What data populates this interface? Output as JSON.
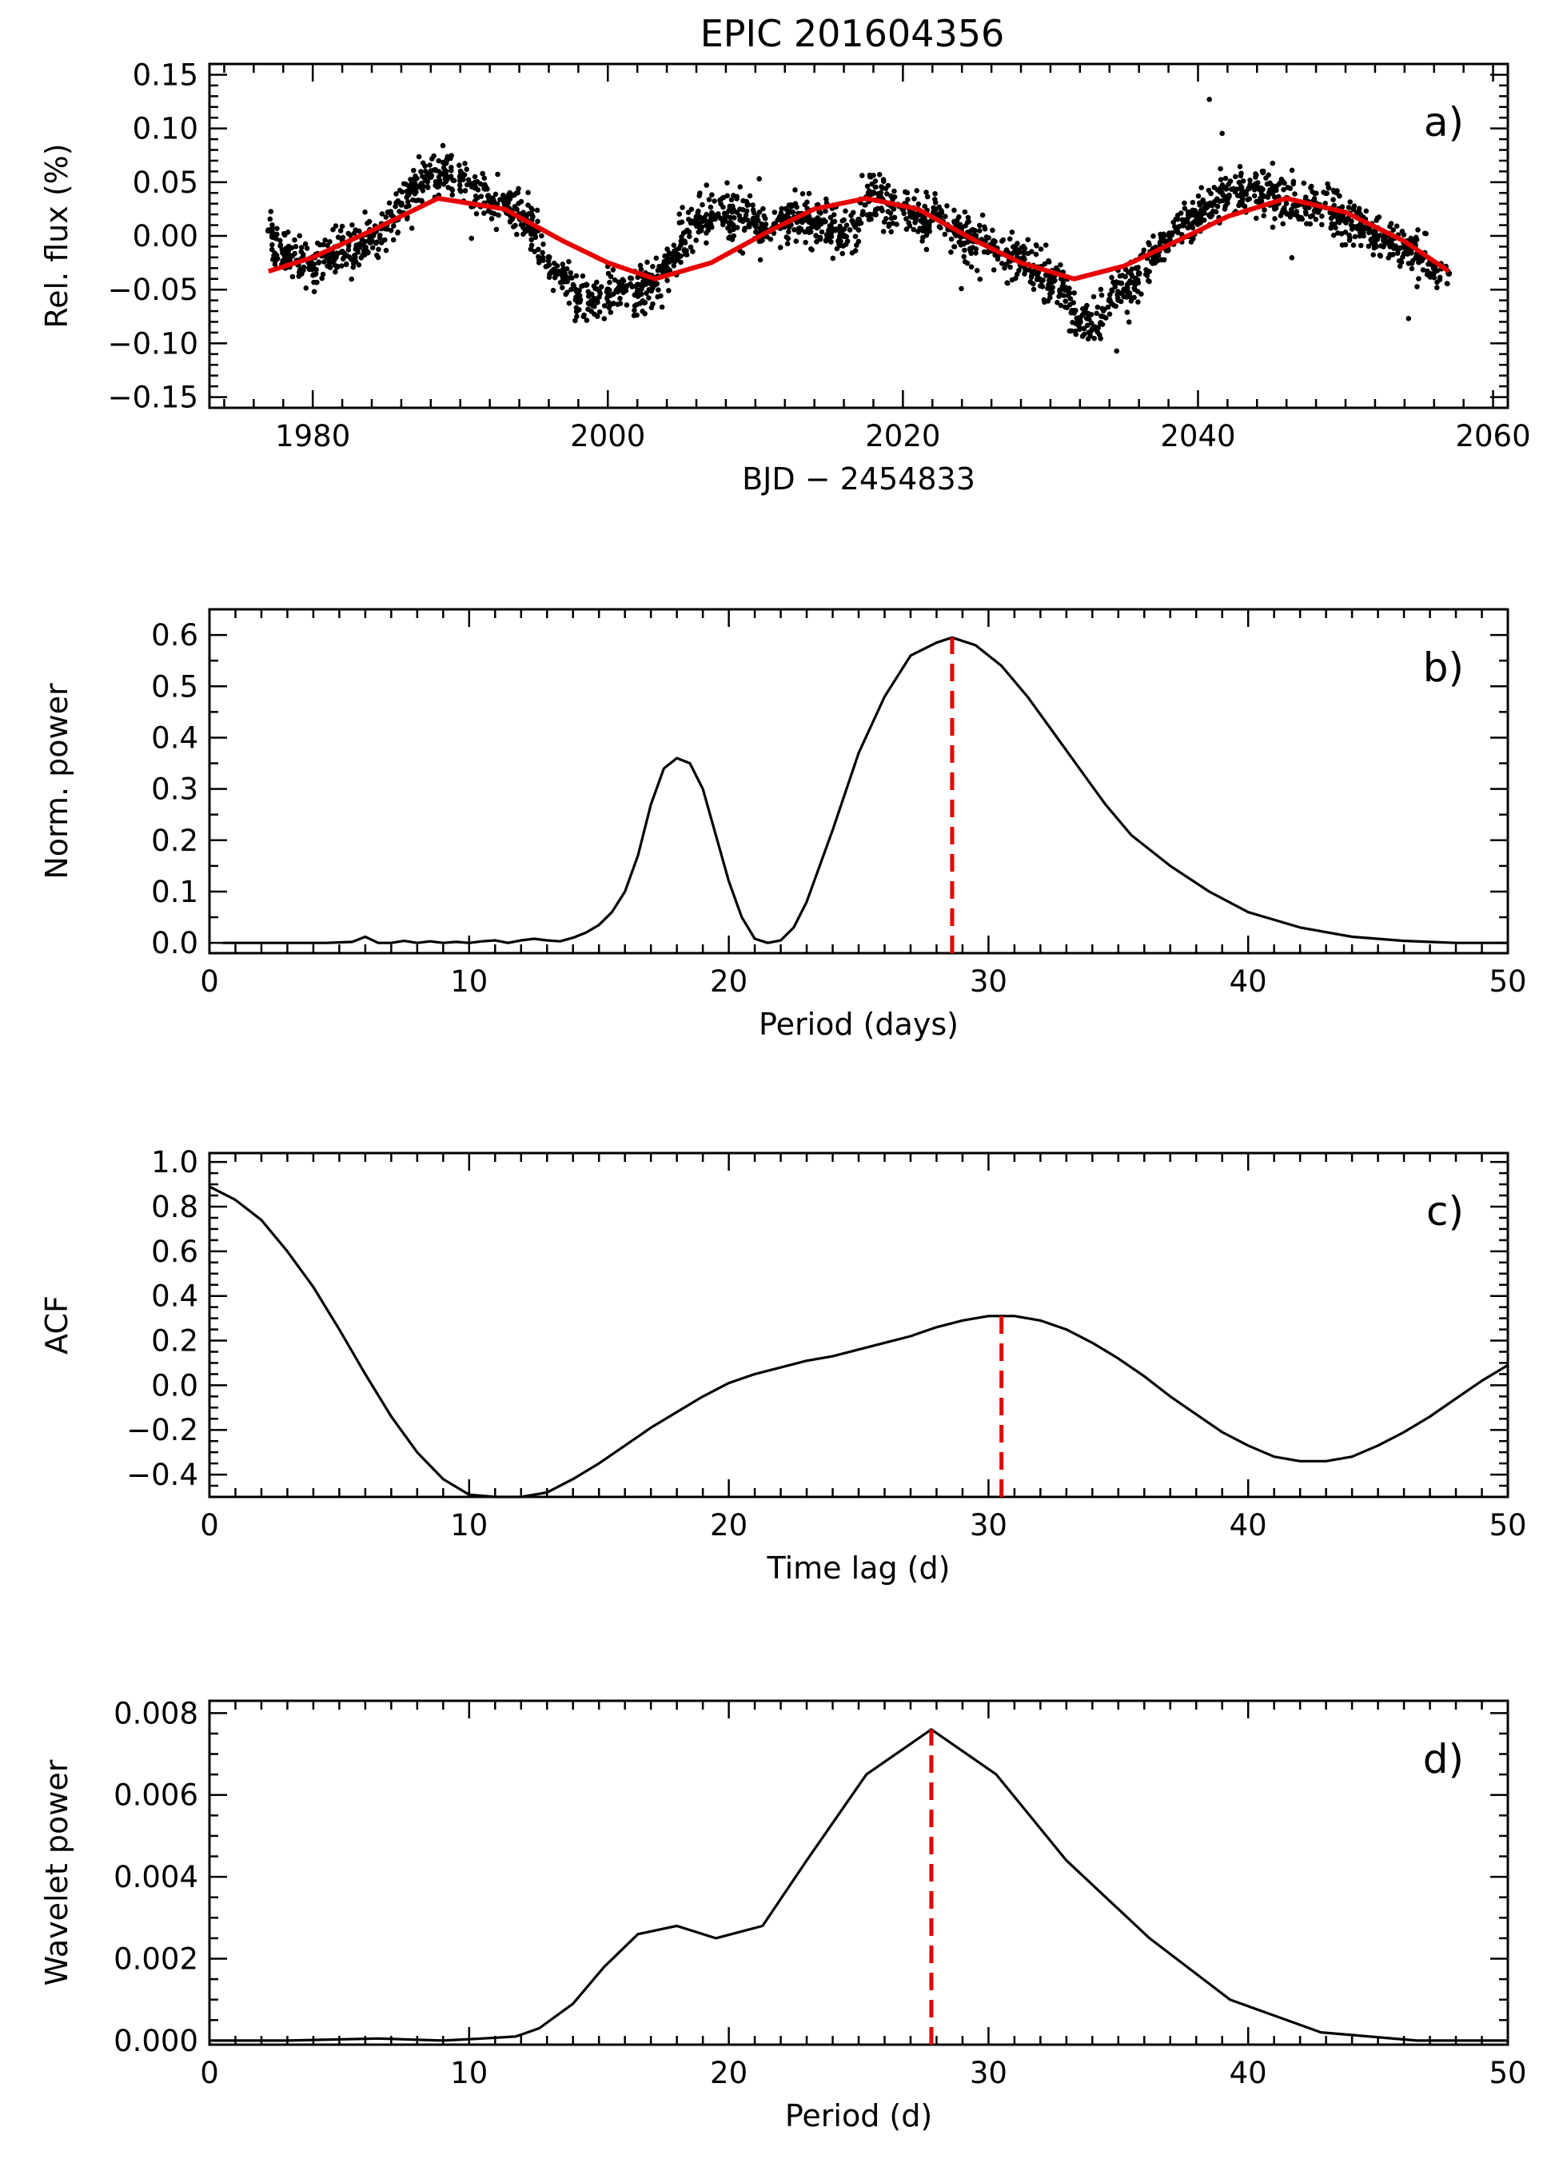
{
  "chart_data": [
    {
      "type": "scatter",
      "title": "EPIC 201604356",
      "panel_label": "a)",
      "xlabel": "BJD − 2454833",
      "ylabel": "Rel. flux (%)",
      "xlim": [
        1973,
        2061
      ],
      "ylim": [
        -0.16,
        0.16
      ],
      "xticks": [
        1980,
        2000,
        2020,
        2040,
        2060
      ],
      "yticks": [
        -0.15,
        -0.1,
        -0.05,
        0.0,
        0.05,
        0.1,
        0.15
      ],
      "xtick_labels": [
        "1980",
        "2000",
        "2020",
        "2040",
        "2060"
      ],
      "ytick_labels": [
        "−0.15",
        "−0.10",
        "−0.05",
        "0.00",
        "0.05",
        "0.10",
        "0.15"
      ],
      "series": [
        {
          "name": "observed flux",
          "kind": "scatter",
          "color": "#000000",
          "x": [
            1977,
            1978,
            1979,
            1980,
            1981,
            1982,
            1983,
            1984,
            1985,
            1986,
            1987,
            1988,
            1989,
            1990,
            1991,
            1992,
            1993,
            1994,
            1995,
            1996,
            1997,
            1998,
            1999,
            2000,
            2001,
            2002,
            2003,
            2004,
            2005,
            2006,
            2007,
            2008,
            2009,
            2010,
            2011,
            2012,
            2013,
            2014,
            2015,
            2016,
            2017,
            2018,
            2019,
            2020,
            2021,
            2022,
            2023,
            2024,
            2025,
            2026,
            2027,
            2028,
            2029,
            2030,
            2031,
            2032,
            2033,
            2034,
            2035,
            2036,
            2037,
            2038,
            2039,
            2040,
            2041,
            2042,
            2043,
            2044,
            2045,
            2046,
            2047,
            2048,
            2049,
            2050,
            2051,
            2052,
            2053,
            2054,
            2055,
            2056,
            2057
          ],
          "y": [
            0.005,
            -0.015,
            -0.025,
            -0.03,
            -0.02,
            -0.015,
            -0.01,
            -0.005,
            0.01,
            0.03,
            0.045,
            0.055,
            0.06,
            0.055,
            0.045,
            0.035,
            0.025,
            0.02,
            0.005,
            -0.02,
            -0.04,
            -0.055,
            -0.06,
            -0.05,
            -0.05,
            -0.055,
            -0.045,
            -0.03,
            -0.005,
            0.015,
            0.015,
            0.02,
            0.015,
            0.01,
            0.005,
            0.015,
            0.02,
            0.01,
            0.005,
            0.0,
            0.015,
            0.04,
            0.03,
            0.025,
            0.02,
            0.015,
            0.01,
            0.0,
            -0.005,
            -0.01,
            -0.015,
            -0.025,
            -0.03,
            -0.04,
            -0.05,
            -0.08,
            -0.085,
            -0.06,
            -0.05,
            -0.035,
            -0.02,
            -0.005,
            0.01,
            0.02,
            0.03,
            0.035,
            0.04,
            0.045,
            0.04,
            0.035,
            0.03,
            0.03,
            0.025,
            0.015,
            0.01,
            0.0,
            -0.005,
            -0.01,
            -0.02,
            -0.03,
            -0.035
          ]
        },
        {
          "name": "sinusoidal fit",
          "kind": "line",
          "color": "#e60000",
          "x": [
            1977,
            1980,
            1984,
            1988.5,
            1993,
            1997,
            2000,
            2003.2,
            2007,
            2011,
            2014,
            2017.5,
            2021,
            2025,
            2028,
            2031.6,
            2035,
            2039,
            2042,
            2046,
            2050,
            2054,
            2057
          ],
          "y": [
            -0.033,
            -0.02,
            0.005,
            0.035,
            0.025,
            -0.005,
            -0.025,
            -0.04,
            -0.025,
            0.005,
            0.025,
            0.035,
            0.025,
            -0.005,
            -0.025,
            -0.04,
            -0.028,
            -0.002,
            0.018,
            0.035,
            0.022,
            -0.005,
            -0.033
          ]
        }
      ]
    },
    {
      "type": "line",
      "panel_label": "b)",
      "xlabel": "Period (days)",
      "ylabel": "Norm. power",
      "xlim": [
        0,
        50
      ],
      "ylim": [
        -0.02,
        0.65
      ],
      "xticks": [
        0,
        10,
        20,
        30,
        40,
        50
      ],
      "yticks": [
        0.0,
        0.1,
        0.2,
        0.3,
        0.4,
        0.5,
        0.6
      ],
      "xtick_labels": [
        "0",
        "10",
        "20",
        "30",
        "40",
        "50"
      ],
      "ytick_labels": [
        "0.0",
        "0.1",
        "0.2",
        "0.3",
        "0.4",
        "0.5",
        "0.6"
      ],
      "marker_x": 28.6,
      "marker_color": "#e60000",
      "series": [
        {
          "name": "periodogram",
          "color": "#000000",
          "x": [
            0.5,
            4.5,
            5.5,
            6,
            6.5,
            7,
            7.5,
            8,
            8.5,
            9,
            9.5,
            10,
            10.5,
            11,
            11.5,
            12,
            12.5,
            13,
            13.5,
            14,
            14.5,
            15,
            15.5,
            16,
            16.5,
            17,
            17.5,
            18,
            18.5,
            19,
            19.5,
            20,
            20.5,
            21,
            21.5,
            22,
            22.5,
            23,
            24,
            25,
            26,
            27,
            28,
            28.6,
            29.5,
            30.5,
            31.5,
            32.5,
            33.5,
            34.5,
            35.5,
            37,
            38.5,
            40,
            42,
            44,
            46,
            48,
            50
          ],
          "y": [
            0.0,
            0.0,
            0.002,
            0.012,
            0.0,
            0.0,
            0.004,
            0.0,
            0.003,
            0.0,
            0.002,
            0.0,
            0.003,
            0.005,
            0.0,
            0.005,
            0.008,
            0.005,
            0.003,
            0.01,
            0.02,
            0.035,
            0.06,
            0.1,
            0.17,
            0.27,
            0.34,
            0.36,
            0.35,
            0.3,
            0.21,
            0.12,
            0.05,
            0.008,
            0.0,
            0.005,
            0.03,
            0.08,
            0.22,
            0.37,
            0.48,
            0.56,
            0.585,
            0.595,
            0.58,
            0.54,
            0.48,
            0.41,
            0.34,
            0.27,
            0.21,
            0.15,
            0.1,
            0.06,
            0.03,
            0.012,
            0.004,
            0.0,
            0.0
          ]
        }
      ]
    },
    {
      "type": "line",
      "panel_label": "c)",
      "xlabel": "Time lag (d)",
      "ylabel": "ACF",
      "xlim": [
        0,
        50
      ],
      "ylim": [
        -0.5,
        1.04
      ],
      "xticks": [
        0,
        10,
        20,
        30,
        40,
        50
      ],
      "yticks": [
        -0.4,
        -0.2,
        0.0,
        0.2,
        0.4,
        0.6,
        0.8,
        1.0
      ],
      "xtick_labels": [
        "0",
        "10",
        "20",
        "30",
        "40",
        "50"
      ],
      "ytick_labels": [
        "−0.4",
        "−0.2",
        "0.0",
        "0.2",
        "0.4",
        "0.6",
        "0.8",
        "1.0"
      ],
      "marker_x": 30.5,
      "marker_color": "#e60000",
      "series": [
        {
          "name": "autocorrelation",
          "color": "#000000",
          "x": [
            0,
            1,
            2,
            3,
            4,
            5,
            6,
            7,
            8,
            9,
            10,
            11,
            12,
            13,
            14,
            15,
            16,
            17,
            18,
            19,
            20,
            21,
            22,
            23,
            24,
            25,
            26,
            27,
            28,
            29,
            30,
            31,
            32,
            33,
            34,
            35,
            36,
            37,
            38,
            39,
            40,
            41,
            42,
            43,
            44,
            45,
            46,
            47,
            48,
            49,
            50
          ],
          "y": [
            0.89,
            0.83,
            0.74,
            0.6,
            0.44,
            0.25,
            0.05,
            -0.14,
            -0.3,
            -0.42,
            -0.49,
            -0.51,
            -0.51,
            -0.48,
            -0.42,
            -0.35,
            -0.27,
            -0.19,
            -0.12,
            -0.05,
            0.01,
            0.05,
            0.08,
            0.11,
            0.13,
            0.16,
            0.19,
            0.22,
            0.26,
            0.29,
            0.31,
            0.31,
            0.29,
            0.25,
            0.19,
            0.12,
            0.04,
            -0.05,
            -0.13,
            -0.21,
            -0.27,
            -0.32,
            -0.34,
            -0.34,
            -0.32,
            -0.27,
            -0.21,
            -0.14,
            -0.06,
            0.02,
            0.09
          ]
        }
      ]
    },
    {
      "type": "line",
      "panel_label": "d)",
      "xlabel": "Period (d)",
      "ylabel": "Wavelet power",
      "xlim": [
        0,
        50
      ],
      "ylim": [
        -0.0001,
        0.0083
      ],
      "xticks": [
        0,
        10,
        20,
        30,
        40,
        50
      ],
      "yticks": [
        0.0,
        0.002,
        0.004,
        0.006,
        0.008
      ],
      "xtick_labels": [
        "0",
        "10",
        "20",
        "30",
        "40",
        "50"
      ],
      "ytick_labels": [
        "0.000",
        "0.002",
        "0.004",
        "0.006",
        "0.008"
      ],
      "marker_x": 27.8,
      "marker_color": "#e60000",
      "series": [
        {
          "name": "global wavelet power",
          "color": "#000000",
          "x": [
            0,
            3,
            6.5,
            9,
            10.5,
            11.8,
            12.7,
            14,
            15.2,
            16.5,
            18,
            19.5,
            21.3,
            23,
            25.3,
            27.8,
            30.3,
            33,
            36.2,
            39.3,
            42.8,
            46.5,
            50
          ],
          "y": [
            0.0,
            0.0,
            5e-05,
            0.0,
            5e-05,
            0.0001,
            0.0003,
            0.0009,
            0.0018,
            0.0026,
            0.0028,
            0.0025,
            0.0028,
            0.0044,
            0.0065,
            0.0076,
            0.0065,
            0.0044,
            0.0025,
            0.001,
            0.0002,
            0.0,
            0.0
          ]
        }
      ]
    }
  ]
}
